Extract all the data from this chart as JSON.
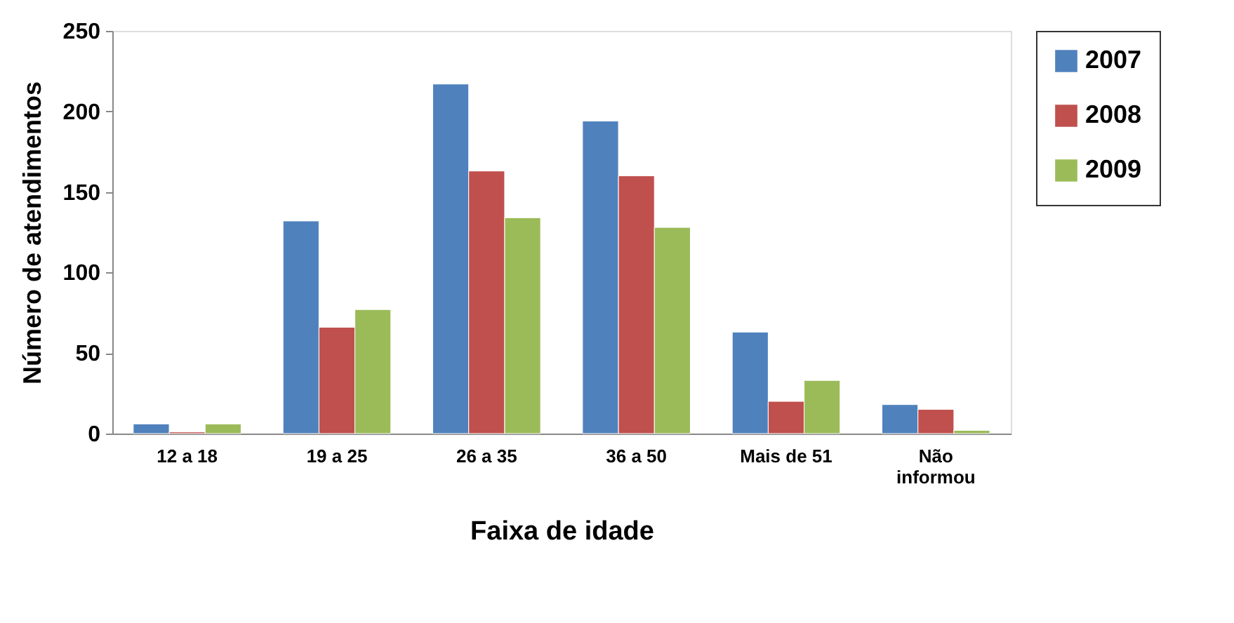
{
  "chart_data": {
    "type": "bar",
    "xlabel": "Faixa de idade",
    "ylabel": "Número de atendimentos",
    "categories": [
      "12 a 18",
      "19 a 25",
      "26 a 35",
      "36 a 50",
      "Mais de 51",
      "Não\ninformou"
    ],
    "series": [
      {
        "name": "2007",
        "color": "#4f81bd",
        "values": [
          6,
          132,
          217,
          194,
          63,
          18
        ]
      },
      {
        "name": "2008",
        "color": "#c0504d",
        "values": [
          1,
          66,
          163,
          160,
          20,
          15
        ]
      },
      {
        "name": "2009",
        "color": "#9bbb59",
        "values": [
          6,
          77,
          134,
          128,
          33,
          2
        ]
      }
    ],
    "ylim": [
      0,
      250
    ],
    "yticks": [
      0,
      50,
      100,
      150,
      200,
      250
    ],
    "grid": false,
    "legend": "right"
  }
}
